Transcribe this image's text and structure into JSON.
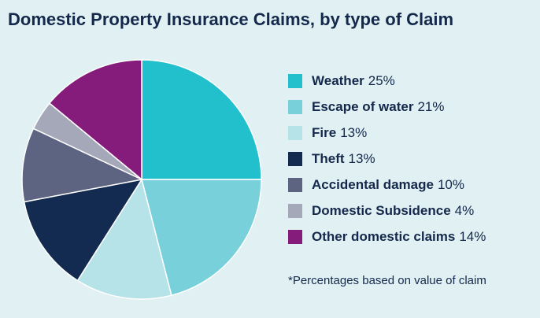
{
  "title": "Domestic Property Insurance Claims, by type of Claim",
  "footnote": "*Percentages based on value of claim",
  "chart_data": {
    "type": "pie",
    "title": "Domestic Property Insurance Claims, by type of Claim",
    "unit": "%",
    "slices": [
      {
        "label": "Weather",
        "value": 25,
        "display": "25%",
        "color": "#22bfcd"
      },
      {
        "label": "Escape of water",
        "value": 21,
        "display": "21%",
        "color": "#78d0da"
      },
      {
        "label": "Fire",
        "value": 13,
        "display": "13%",
        "color": "#b5e3e8"
      },
      {
        "label": "Theft",
        "value": 13,
        "display": "13%",
        "color": "#132b50"
      },
      {
        "label": "Accidental damage",
        "value": 10,
        "display": "10%",
        "color": "#5d6482"
      },
      {
        "label": "Domestic Subsidence",
        "value": 4,
        "display": "4%",
        "color": "#a5a8b9"
      },
      {
        "label": "Other domestic claims",
        "value": 14,
        "display": "14%",
        "color": "#851b7a"
      }
    ],
    "legend_position": "right"
  }
}
